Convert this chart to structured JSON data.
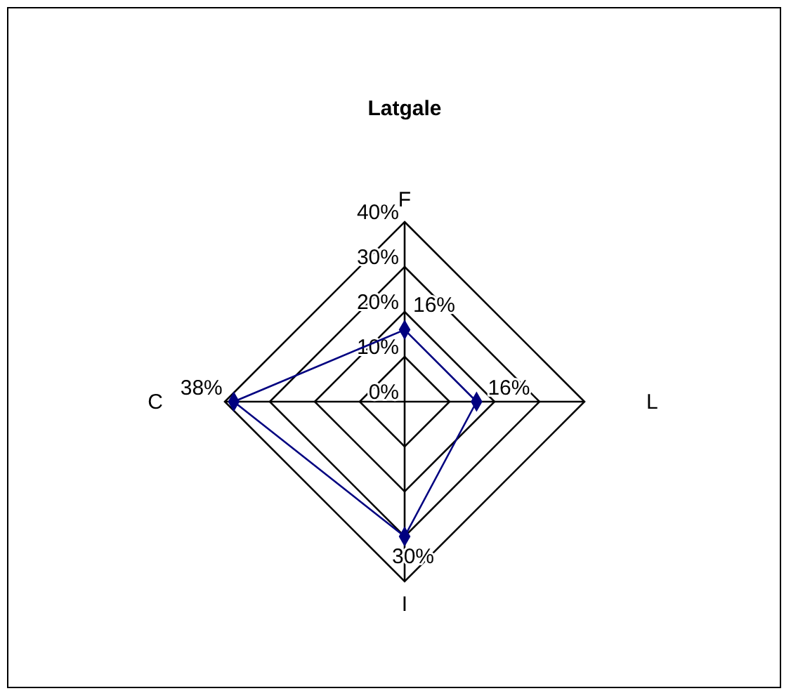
{
  "chart_data": {
    "type": "radar",
    "title": "Latgale",
    "categories": [
      "F",
      "L",
      "I",
      "C"
    ],
    "series": [
      {
        "color": "#000080",
        "values": [
          16,
          16,
          30,
          38
        ],
        "value_labels": [
          "16%",
          "16%",
          "30%",
          "38%"
        ]
      }
    ],
    "ylim": [
      0,
      40
    ],
    "yticks": [
      {
        "value": 0,
        "label": "0%"
      },
      {
        "value": 10,
        "label": "10%"
      },
      {
        "value": 20,
        "label": "20%"
      },
      {
        "value": 30,
        "label": "30%"
      },
      {
        "value": 40,
        "label": "40%"
      }
    ],
    "grid": true,
    "marker": "diamond"
  }
}
